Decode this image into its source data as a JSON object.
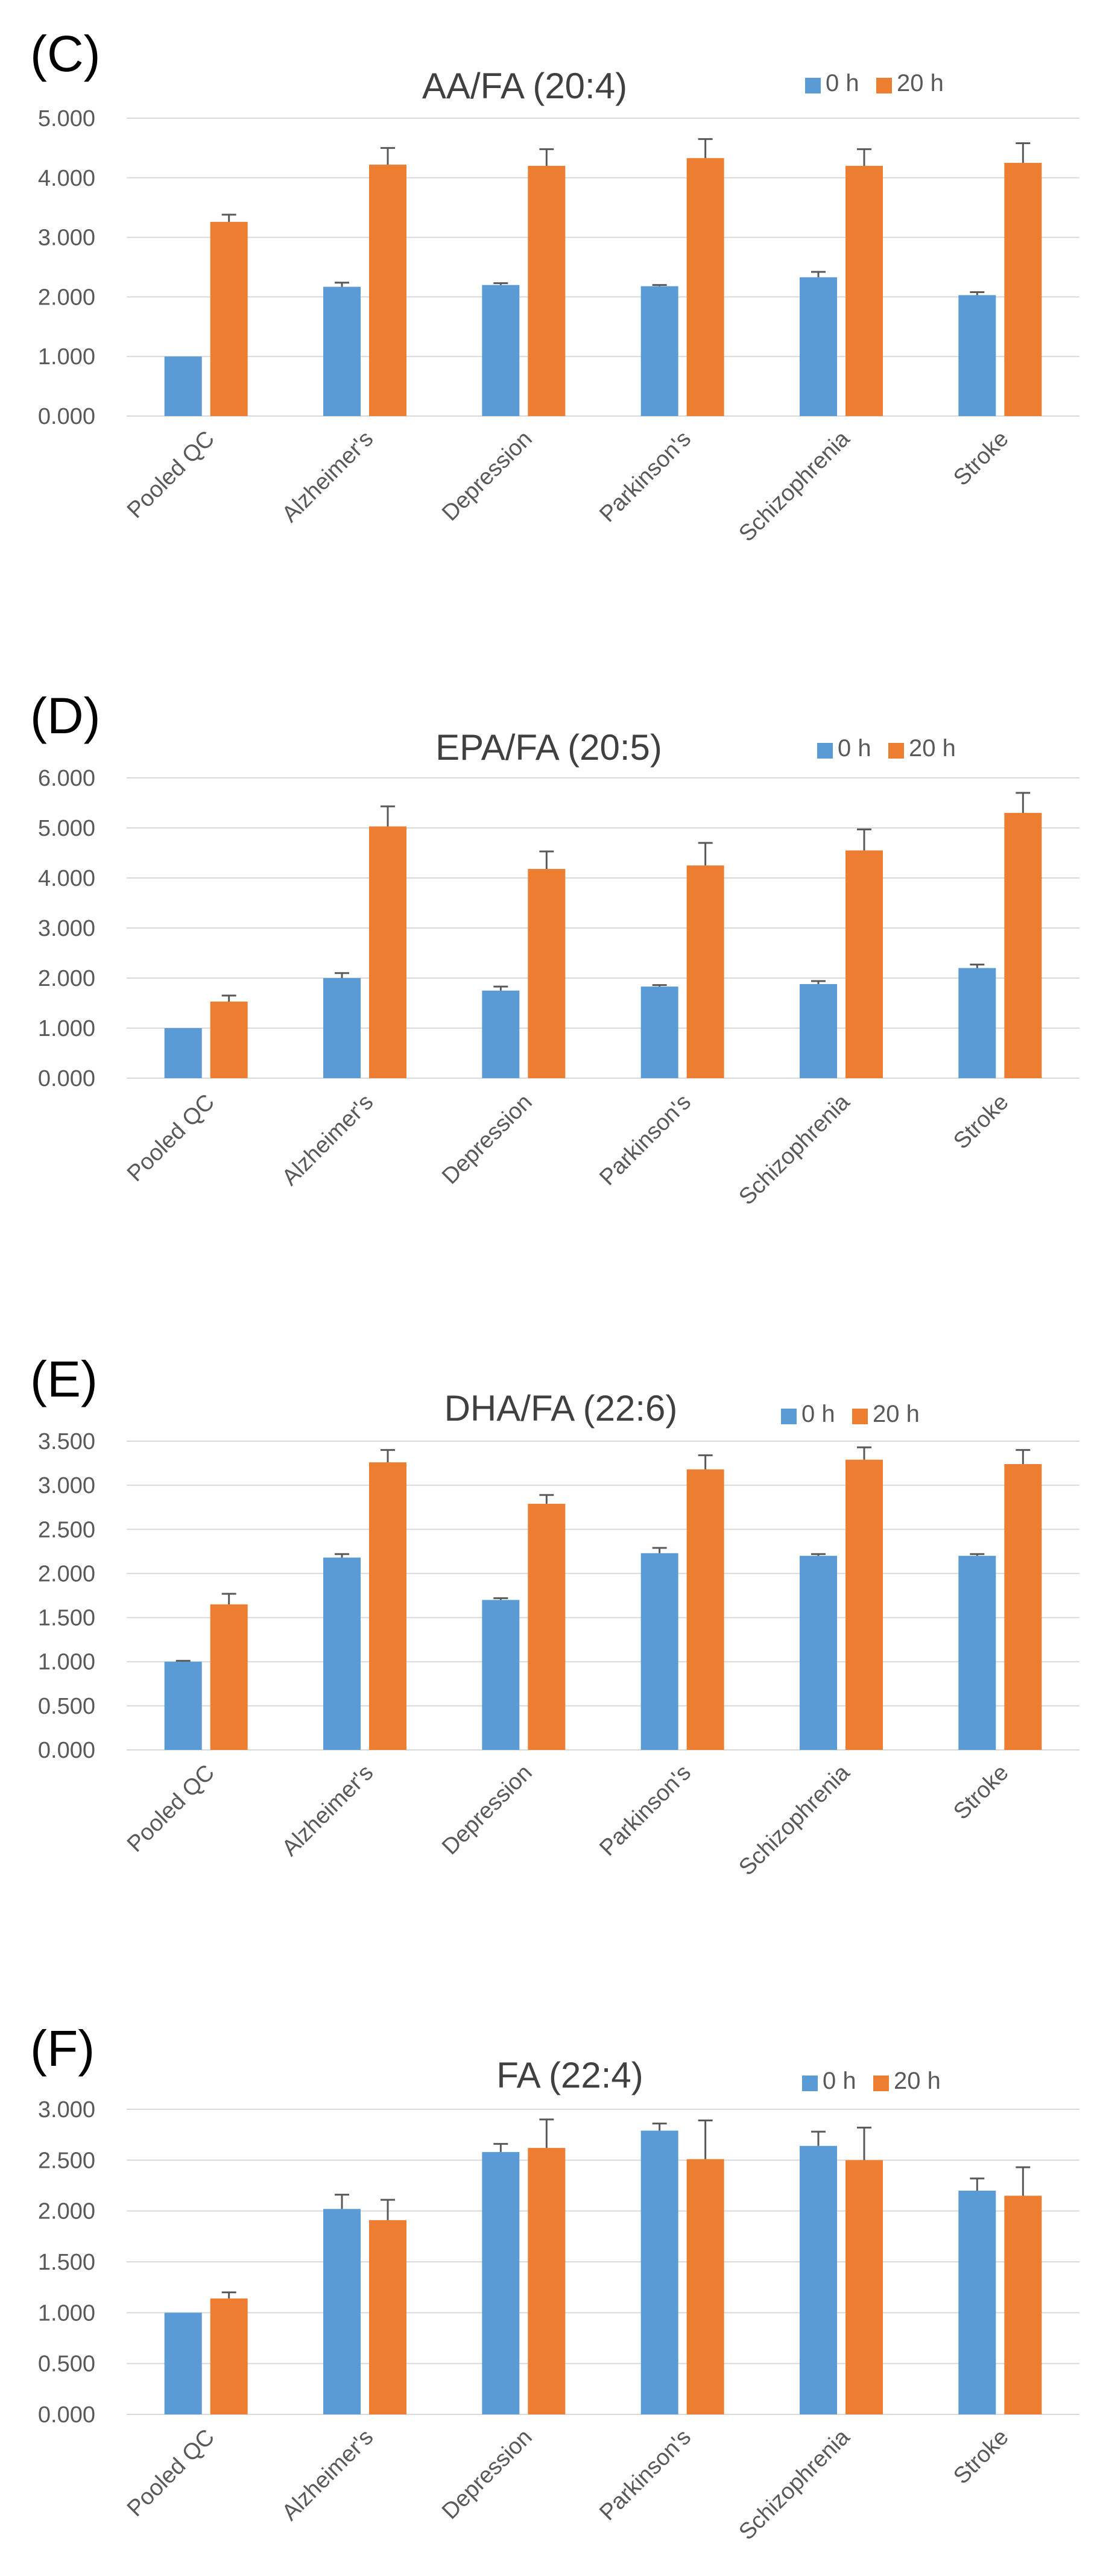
{
  "colors": {
    "series_0h": "#5b9bd5",
    "series_20h": "#ed7d31"
  },
  "chart_data": [
    {
      "panel": "(C)",
      "type": "bar",
      "title": "AA/FA (20:4)",
      "xlabel": "",
      "ylabel": "",
      "ylim": [
        0,
        5
      ],
      "yticks": [
        "0.000",
        "1.000",
        "2.000",
        "3.000",
        "4.000",
        "5.000"
      ],
      "grid": true,
      "legend": "top-right",
      "categories": [
        "Pooled QC",
        "Alzheimer's",
        "Depression",
        "Parkinson's",
        "Schizophrenia",
        "Stroke"
      ],
      "series": [
        {
          "name": "0 h",
          "values": [
            1.0,
            2.17,
            2.2,
            2.18,
            2.33,
            2.03
          ],
          "errors": [
            0.0,
            0.07,
            0.03,
            0.02,
            0.09,
            0.05
          ]
        },
        {
          "name": "20 h",
          "values": [
            3.26,
            4.22,
            4.2,
            4.33,
            4.2,
            4.25
          ],
          "errors": [
            0.12,
            0.28,
            0.28,
            0.32,
            0.28,
            0.33
          ]
        }
      ]
    },
    {
      "panel": "(D)",
      "type": "bar",
      "title": "EPA/FA (20:5)",
      "xlabel": "",
      "ylabel": "",
      "ylim": [
        0,
        6
      ],
      "yticks": [
        "0.000",
        "1.000",
        "2.000",
        "3.000",
        "4.000",
        "5.000",
        "6.000"
      ],
      "grid": true,
      "legend": "top-right",
      "categories": [
        "Pooled QC",
        "Alzheimer's",
        "Depression",
        "Parkinson's",
        "Schizophrenia",
        "Stroke"
      ],
      "series": [
        {
          "name": "0 h",
          "values": [
            1.0,
            2.0,
            1.75,
            1.83,
            1.88,
            2.2
          ],
          "errors": [
            0.0,
            0.1,
            0.08,
            0.03,
            0.06,
            0.07
          ]
        },
        {
          "name": "20 h",
          "values": [
            1.53,
            5.03,
            4.18,
            4.25,
            4.55,
            5.3
          ],
          "errors": [
            0.12,
            0.4,
            0.35,
            0.45,
            0.42,
            0.4
          ]
        }
      ]
    },
    {
      "panel": "(E)",
      "type": "bar",
      "title": "DHA/FA (22:6)",
      "xlabel": "",
      "ylabel": "",
      "ylim": [
        0,
        3.5
      ],
      "yticks": [
        "0.000",
        "0.500",
        "1.000",
        "1.500",
        "2.000",
        "2.500",
        "3.000",
        "3.500"
      ],
      "grid": true,
      "legend": "top-right",
      "categories": [
        "Pooled QC",
        "Alzheimer's",
        "Depression",
        "Parkinson's",
        "Schizophrenia",
        "Stroke"
      ],
      "series": [
        {
          "name": "0 h",
          "values": [
            1.0,
            2.18,
            1.7,
            2.23,
            2.2,
            2.2
          ],
          "errors": [
            0.01,
            0.04,
            0.02,
            0.06,
            0.02,
            0.02
          ]
        },
        {
          "name": "20 h",
          "values": [
            1.65,
            3.26,
            2.79,
            3.18,
            3.29,
            3.24
          ],
          "errors": [
            0.12,
            0.14,
            0.1,
            0.16,
            0.14,
            0.16
          ]
        }
      ]
    },
    {
      "panel": "(F)",
      "type": "bar",
      "title": "FA (22:4)",
      "xlabel": "",
      "ylabel": "",
      "ylim": [
        0,
        3
      ],
      "yticks": [
        "0.000",
        "0.500",
        "1.000",
        "1.500",
        "2.000",
        "2.500",
        "3.000"
      ],
      "grid": true,
      "legend": "top-right",
      "categories": [
        "Pooled QC",
        "Alzheimer's",
        "Depression",
        "Parkinson's",
        "Schizophrenia",
        "Stroke"
      ],
      "series": [
        {
          "name": "0 h",
          "values": [
            1.0,
            2.02,
            2.58,
            2.79,
            2.64,
            2.2
          ],
          "errors": [
            0.0,
            0.14,
            0.08,
            0.07,
            0.14,
            0.12
          ]
        },
        {
          "name": "20 h",
          "values": [
            1.14,
            1.91,
            2.62,
            2.51,
            2.5,
            2.15
          ],
          "errors": [
            0.06,
            0.2,
            0.28,
            0.38,
            0.32,
            0.28
          ]
        }
      ]
    }
  ]
}
